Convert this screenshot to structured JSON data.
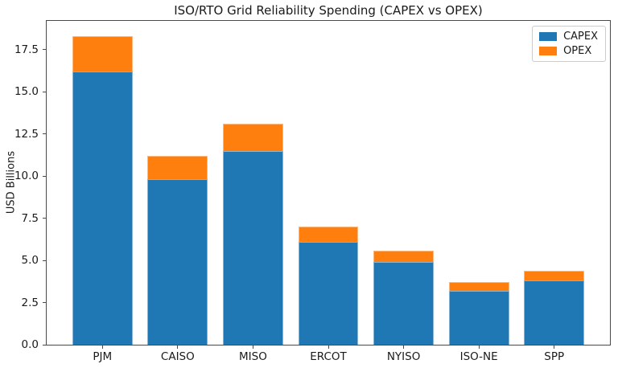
{
  "chart_data": {
    "type": "bar",
    "stacked": true,
    "title": "ISO/RTO Grid Reliability Spending (CAPEX vs OPEX)",
    "xlabel": "",
    "ylabel": "USD Billions",
    "categories": [
      "PJM",
      "CAISO",
      "MISO",
      "ERCOT",
      "NYISO",
      "ISO-NE",
      "SPP"
    ],
    "series": [
      {
        "name": "CAPEX",
        "color": "#1f77b4",
        "values": [
          16.2,
          9.8,
          11.5,
          6.1,
          4.9,
          3.2,
          3.8
        ]
      },
      {
        "name": "OPEX",
        "color": "#ff7f0e",
        "values": [
          2.1,
          1.4,
          1.6,
          0.9,
          0.7,
          0.5,
          0.6
        ]
      }
    ],
    "totals": [
      18.3,
      11.2,
      13.1,
      7.0,
      5.6,
      3.7,
      4.4
    ],
    "ylim": [
      0,
      19.215
    ],
    "yticks": [
      "0.0",
      "2.5",
      "5.0",
      "7.5",
      "10.0",
      "12.5",
      "15.0",
      "17.5"
    ],
    "bar_width_units": 0.8,
    "x_margin_frac": 0.05,
    "grid": false,
    "legend": {
      "position": "upper right",
      "entries": [
        "CAPEX",
        "OPEX"
      ]
    }
  }
}
